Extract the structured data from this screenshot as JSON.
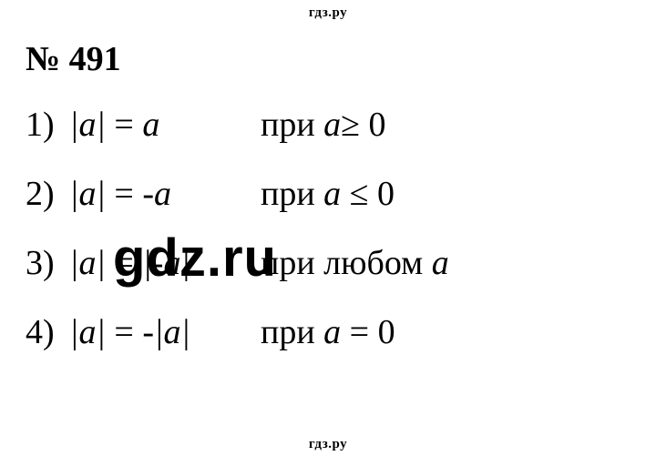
{
  "header": "гдз.ру",
  "footer": "гдз.ру",
  "watermark": "gdz.ru",
  "title": "№ 491",
  "lines": [
    {
      "num": "1)",
      "formula_html": "|<i>a</i>| <span class='upright'>=</span> <i>a</i>",
      "cond_prefix": "при ",
      "cond_var": "a",
      "cond_rel": "≥ 0"
    },
    {
      "num": "2)",
      "formula_html": "|<i>a</i>| <span class='upright'>=</span> -<i>a</i>",
      "cond_prefix": "при ",
      "cond_var": "a",
      "cond_rel": " ≤ 0"
    },
    {
      "num": "3)",
      "formula_html": "|<i>a</i>| <span class='upright'>=</span> |-<i>a</i>|",
      "cond_prefix": "при любом ",
      "cond_var": "a",
      "cond_rel": ""
    },
    {
      "num": "4)",
      "formula_html": "|<i>a</i>| <span class='upright'>=</span> -|<i>a</i>|",
      "cond_prefix": "при ",
      "cond_var": "a",
      "cond_rel": " = 0"
    }
  ],
  "colors": {
    "background": "#ffffff",
    "text": "#000000"
  },
  "fonts": {
    "body_family": "Times New Roman",
    "body_size_pt": 28,
    "title_size_pt": 28,
    "header_size_pt": 11,
    "watermark_family": "Arial",
    "watermark_size_pt": 44
  }
}
